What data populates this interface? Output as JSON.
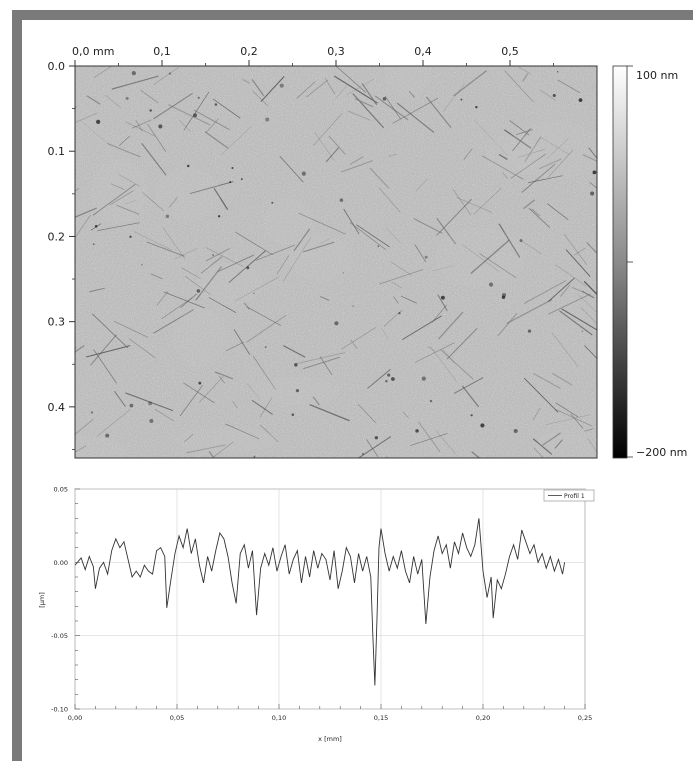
{
  "afm_image": {
    "x_axis": {
      "unit_label": "0,0 mm",
      "ticks": [
        {
          "value": 0.0,
          "label": "0,0 mm"
        },
        {
          "value": 0.1,
          "label": "0,1"
        },
        {
          "value": 0.2,
          "label": "0,2"
        },
        {
          "value": 0.3,
          "label": "0,3"
        },
        {
          "value": 0.4,
          "label": "0,4"
        },
        {
          "value": 0.5,
          "label": "0,5"
        }
      ],
      "range": [
        0,
        0.6
      ]
    },
    "y_axis": {
      "ticks": [
        {
          "value": 0.0,
          "label": "0.0"
        },
        {
          "value": 0.1,
          "label": "0.1"
        },
        {
          "value": 0.2,
          "label": "0.2"
        },
        {
          "value": 0.3,
          "label": "0.3"
        },
        {
          "value": 0.4,
          "label": "0.4"
        }
      ],
      "range": [
        0,
        0.46
      ]
    },
    "colorbar": {
      "max_label": "100 nm",
      "min_label": "−200 nm",
      "range": [
        -200,
        100
      ]
    }
  },
  "chart_data": {
    "type": "line",
    "title": "",
    "xlabel": "x [mm]",
    "ylabel": "[µm]",
    "xlim": [
      0,
      0.25
    ],
    "ylim": [
      -0.1,
      0.05
    ],
    "grid": true,
    "legend_position": "top-right",
    "x_ticks": [
      {
        "value": 0.0,
        "label": "0,00"
      },
      {
        "value": 0.05,
        "label": "0,05"
      },
      {
        "value": 0.1,
        "label": "0,10"
      },
      {
        "value": 0.15,
        "label": "0,15"
      },
      {
        "value": 0.2,
        "label": "0,20"
      },
      {
        "value": 0.25,
        "label": "0,25"
      }
    ],
    "y_ticks": [
      {
        "value": 0.05,
        "label": "0.05"
      },
      {
        "value": 0.0,
        "label": "0.00"
      },
      {
        "value": -0.05,
        "label": "-0.05"
      },
      {
        "value": -0.1,
        "label": "-0.10"
      }
    ],
    "series": [
      {
        "name": "Profil 1",
        "color": "#333333",
        "points": [
          [
            0.0,
            -0.002
          ],
          [
            0.003,
            0.003
          ],
          [
            0.005,
            -0.005
          ],
          [
            0.007,
            0.004
          ],
          [
            0.009,
            -0.003
          ],
          [
            0.01,
            -0.018
          ],
          [
            0.012,
            -0.004
          ],
          [
            0.014,
            0.0
          ],
          [
            0.016,
            -0.008
          ],
          [
            0.018,
            0.008
          ],
          [
            0.02,
            0.016
          ],
          [
            0.022,
            0.01
          ],
          [
            0.024,
            0.014
          ],
          [
            0.026,
            0.002
          ],
          [
            0.028,
            -0.01
          ],
          [
            0.03,
            -0.006
          ],
          [
            0.032,
            -0.01
          ],
          [
            0.034,
            -0.002
          ],
          [
            0.036,
            -0.006
          ],
          [
            0.038,
            -0.008
          ],
          [
            0.04,
            0.008
          ],
          [
            0.042,
            0.01
          ],
          [
            0.044,
            0.004
          ],
          [
            0.045,
            -0.031
          ],
          [
            0.047,
            -0.012
          ],
          [
            0.049,
            0.006
          ],
          [
            0.051,
            0.018
          ],
          [
            0.053,
            0.01
          ],
          [
            0.055,
            0.023
          ],
          [
            0.057,
            0.006
          ],
          [
            0.059,
            0.016
          ],
          [
            0.061,
            -0.002
          ],
          [
            0.063,
            -0.014
          ],
          [
            0.065,
            0.004
          ],
          [
            0.067,
            -0.006
          ],
          [
            0.069,
            0.008
          ],
          [
            0.071,
            0.02
          ],
          [
            0.073,
            0.016
          ],
          [
            0.075,
            0.004
          ],
          [
            0.077,
            -0.014
          ],
          [
            0.079,
            -0.028
          ],
          [
            0.081,
            0.006
          ],
          [
            0.083,
            0.012
          ],
          [
            0.085,
            -0.004
          ],
          [
            0.087,
            0.008
          ],
          [
            0.089,
            -0.036
          ],
          [
            0.091,
            -0.004
          ],
          [
            0.093,
            0.006
          ],
          [
            0.095,
            -0.002
          ],
          [
            0.097,
            0.01
          ],
          [
            0.099,
            -0.006
          ],
          [
            0.101,
            0.004
          ],
          [
            0.103,
            0.012
          ],
          [
            0.105,
            -0.008
          ],
          [
            0.107,
            0.002
          ],
          [
            0.109,
            0.008
          ],
          [
            0.111,
            -0.014
          ],
          [
            0.113,
            0.004
          ],
          [
            0.115,
            -0.01
          ],
          [
            0.117,
            0.008
          ],
          [
            0.119,
            -0.004
          ],
          [
            0.121,
            0.006
          ],
          [
            0.123,
            0.002
          ],
          [
            0.125,
            -0.012
          ],
          [
            0.127,
            0.008
          ],
          [
            0.129,
            -0.018
          ],
          [
            0.131,
            -0.006
          ],
          [
            0.133,
            0.01
          ],
          [
            0.135,
            0.004
          ],
          [
            0.137,
            -0.014
          ],
          [
            0.139,
            0.006
          ],
          [
            0.141,
            -0.006
          ],
          [
            0.143,
            0.004
          ],
          [
            0.145,
            -0.01
          ],
          [
            0.146,
            -0.05
          ],
          [
            0.147,
            -0.084
          ],
          [
            0.148,
            -0.04
          ],
          [
            0.149,
            0.01
          ],
          [
            0.15,
            0.023
          ],
          [
            0.152,
            0.006
          ],
          [
            0.154,
            -0.006
          ],
          [
            0.156,
            0.004
          ],
          [
            0.158,
            -0.004
          ],
          [
            0.16,
            0.008
          ],
          [
            0.162,
            -0.006
          ],
          [
            0.164,
            -0.014
          ],
          [
            0.166,
            0.004
          ],
          [
            0.168,
            -0.008
          ],
          [
            0.17,
            0.002
          ],
          [
            0.172,
            -0.042
          ],
          [
            0.174,
            -0.01
          ],
          [
            0.176,
            0.008
          ],
          [
            0.178,
            0.018
          ],
          [
            0.18,
            0.006
          ],
          [
            0.182,
            0.012
          ],
          [
            0.184,
            -0.004
          ],
          [
            0.186,
            0.014
          ],
          [
            0.188,
            0.006
          ],
          [
            0.19,
            0.02
          ],
          [
            0.192,
            0.01
          ],
          [
            0.194,
            0.004
          ],
          [
            0.196,
            0.012
          ],
          [
            0.198,
            0.03
          ],
          [
            0.2,
            -0.006
          ],
          [
            0.202,
            -0.024
          ],
          [
            0.204,
            -0.01
          ],
          [
            0.205,
            -0.038
          ],
          [
            0.207,
            -0.012
          ],
          [
            0.209,
            -0.018
          ],
          [
            0.211,
            -0.008
          ],
          [
            0.213,
            0.004
          ],
          [
            0.215,
            0.012
          ],
          [
            0.217,
            0.002
          ],
          [
            0.219,
            0.022
          ],
          [
            0.221,
            0.014
          ],
          [
            0.223,
            0.006
          ],
          [
            0.225,
            0.012
          ],
          [
            0.227,
            0.0
          ],
          [
            0.229,
            0.006
          ],
          [
            0.231,
            -0.004
          ],
          [
            0.233,
            0.004
          ],
          [
            0.235,
            -0.006
          ],
          [
            0.237,
            0.002
          ],
          [
            0.239,
            -0.008
          ],
          [
            0.24,
            0.0
          ]
        ]
      }
    ]
  }
}
